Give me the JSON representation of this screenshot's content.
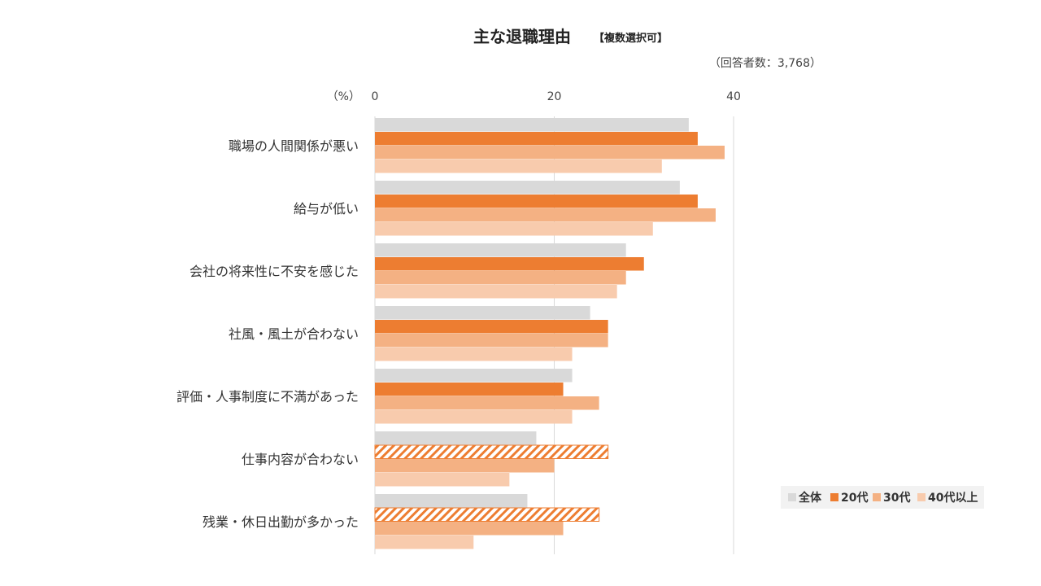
{
  "chart_data": {
    "type": "bar",
    "orientation": "horizontal",
    "title": "主な退職理由",
    "subtitle": "【複数選択可】",
    "note": "（回答者数：3,768）",
    "unit_label": "（%）",
    "xlim": [
      0,
      40
    ],
    "x_ticks": [
      "0",
      "20",
      "40"
    ],
    "grid": true,
    "legend_position": "bottom-right",
    "categories": [
      "職場の人間関係が悪い",
      "給与が低い",
      "会社の将来性に不安を感じた",
      "社風・風土が合わない",
      "評価・人事制度に不満があった",
      "仕事内容が合わない",
      "残業・休日出勤が多かった"
    ],
    "series": [
      {
        "name": "全体",
        "color": "#d9d9d9",
        "values": [
          35,
          34,
          28,
          24,
          22,
          18,
          17
        ]
      },
      {
        "name": "20代",
        "color": "#ed7d31",
        "values": [
          36,
          36,
          30,
          26,
          21,
          26,
          25
        ],
        "hatched": [
          false,
          false,
          false,
          false,
          false,
          true,
          true
        ]
      },
      {
        "name": "30代",
        "color": "#f4b183",
        "values": [
          39,
          38,
          28,
          26,
          25,
          20,
          21
        ]
      },
      {
        "name": "40代以上",
        "color": "#f8cbad",
        "values": [
          32,
          31,
          27,
          22,
          22,
          15,
          11
        ]
      }
    ]
  }
}
